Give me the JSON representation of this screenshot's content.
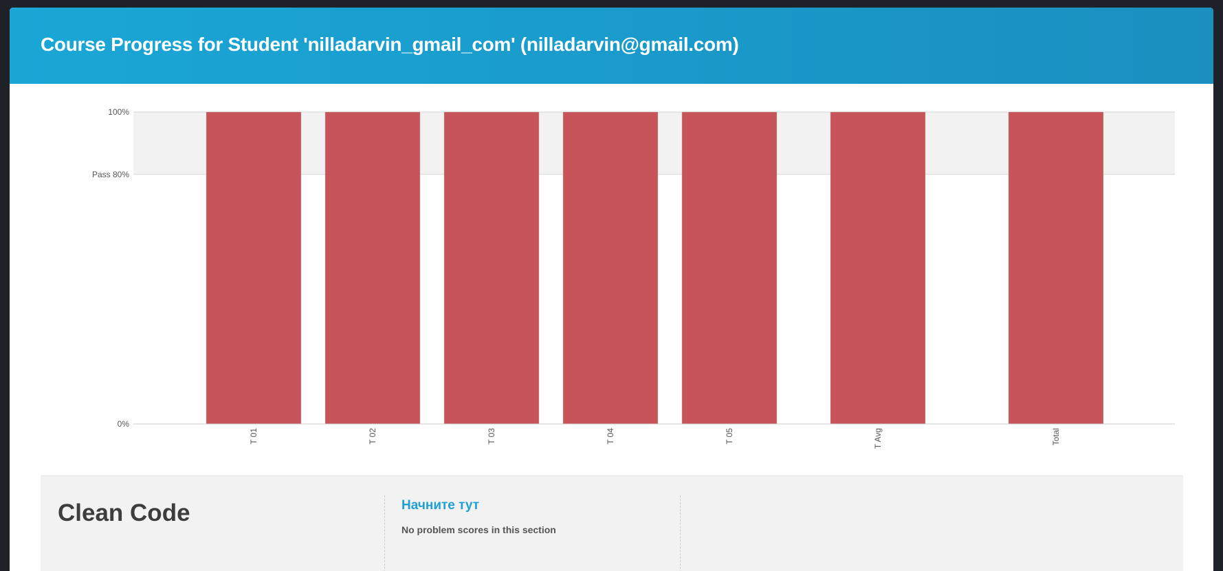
{
  "header": {
    "title": "Course Progress for Student 'nilladarvin_gmail_com' (nilladarvin@gmail.com)"
  },
  "colors": {
    "header_gradient_start": "#1aa7d6",
    "header_gradient_end": "#1a8fc0",
    "bar": "#c44b4f",
    "pass_band": "#f2f2f2",
    "link": "#1f9fd3"
  },
  "chart_data": {
    "type": "bar",
    "categories": [
      "T 01",
      "T 02",
      "T 03",
      "T 04",
      "T 05",
      "T Avg",
      "Total"
    ],
    "values": [
      100,
      100,
      100,
      100,
      100,
      100,
      100
    ],
    "ylim": [
      0,
      100
    ],
    "y_ticks": [
      {
        "value": 100,
        "label": "100%"
      },
      {
        "value": 80,
        "label": "Pass 80%"
      },
      {
        "value": 0,
        "label": "0%"
      }
    ],
    "pass_threshold": 80,
    "grid": true,
    "x_label_rotation": "vertical",
    "title": "",
    "xlabel": "",
    "ylabel": ""
  },
  "chapter": {
    "title": "Clean Code",
    "subsection_link": "Начните тут",
    "subsection_note": "No problem scores in this section"
  }
}
